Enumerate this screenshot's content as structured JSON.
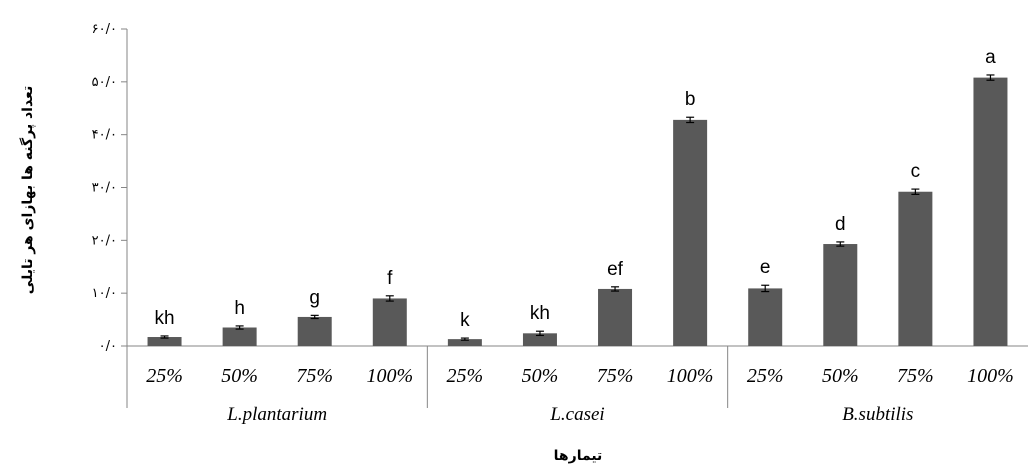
{
  "chart_data": {
    "type": "bar",
    "ylabel": "تعداد پرگنه ها بهازای هر تایلی",
    "xlabel": "تیمارها",
    "ylim": [
      0,
      60
    ],
    "yticks": [
      0,
      10,
      20,
      30,
      40,
      50,
      60
    ],
    "ytick_labels": [
      "۰/۰",
      "۱۰/۰",
      "۲۰/۰",
      "۳۰/۰",
      "۴۰/۰",
      "۵۰/۰",
      "۶۰/۰"
    ],
    "bar_color": "#595959",
    "groups": [
      {
        "name": "L.plantarium",
        "categories": [
          "25%",
          "50%",
          "75%",
          "100%"
        ],
        "values": [
          1.7,
          3.5,
          5.5,
          9.0
        ],
        "errors": [
          0.2,
          0.3,
          0.3,
          0.5
        ],
        "letters": [
          "kh",
          "h",
          "g",
          "f"
        ]
      },
      {
        "name": "L.casei",
        "categories": [
          "25%",
          "50%",
          "75%",
          "100%"
        ],
        "values": [
          1.3,
          2.4,
          10.8,
          42.8
        ],
        "errors": [
          0.2,
          0.4,
          0.4,
          0.5
        ],
        "letters": [
          "k",
          "kh",
          "ef",
          "b"
        ]
      },
      {
        "name": "B.subtilis",
        "categories": [
          "25%",
          "50%",
          "75%",
          "100%"
        ],
        "values": [
          10.9,
          19.3,
          29.2,
          50.8
        ],
        "errors": [
          0.6,
          0.4,
          0.5,
          0.5
        ],
        "letters": [
          "e",
          "d",
          "c",
          "a"
        ]
      }
    ]
  }
}
